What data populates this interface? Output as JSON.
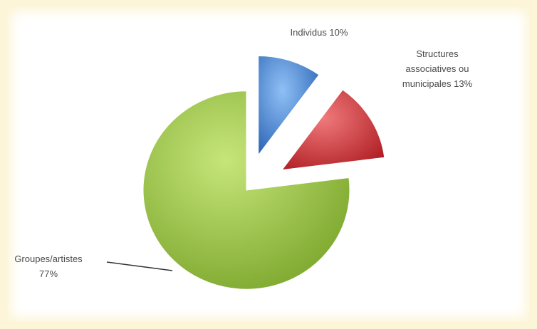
{
  "chart_data": {
    "type": "pie",
    "title": "",
    "exploded": true,
    "slices": [
      {
        "label": "Individus 10%",
        "label_lines": [
          "Individus 10%"
        ],
        "value": 10,
        "color": "#3f7fd1"
      },
      {
        "label": "Structures associatives ou municipales 13%",
        "label_lines": [
          "Structures",
          "associatives ou",
          "municipales 13%"
        ],
        "value": 13,
        "color": "#cf3438"
      },
      {
        "label": "Groupes/artistes 77%",
        "label_lines": [
          "Groupes/artistes",
          "77%"
        ],
        "value": 77,
        "color": "#9cc43b"
      }
    ]
  }
}
